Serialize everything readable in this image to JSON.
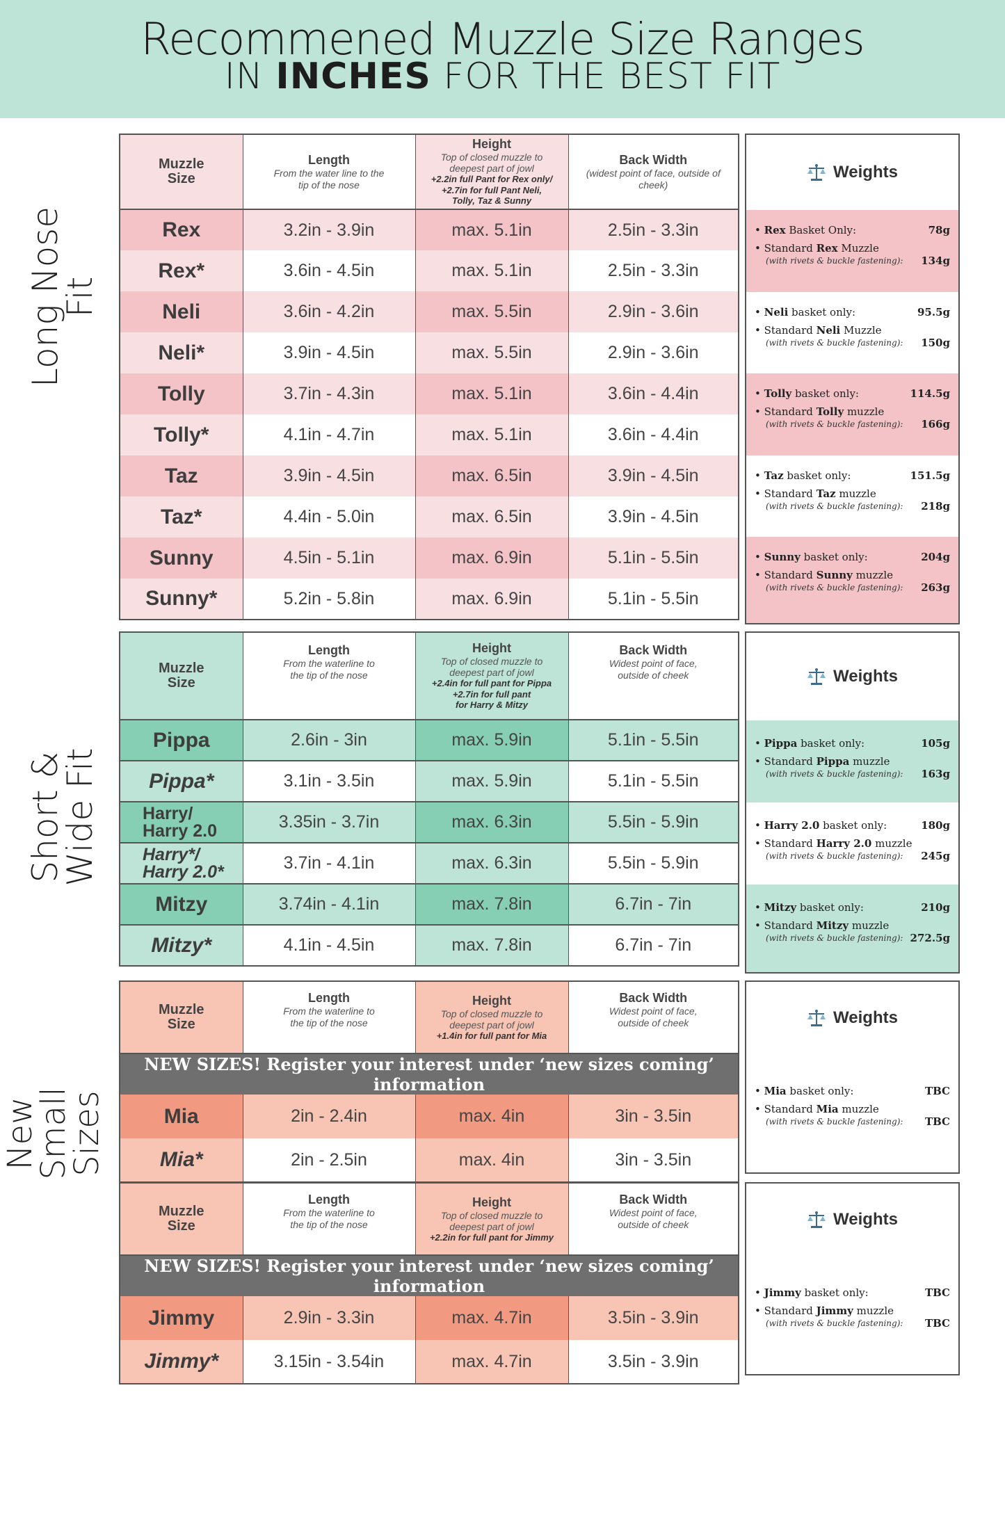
{
  "title": {
    "line1": "Recommened Muzzle Size Ranges",
    "line2_pre": "IN",
    "line2_bold": "INCHES",
    "line2_post": "FOR THE BEST FIT"
  },
  "sections": {
    "long_nose": "Long Nose Fit",
    "short_wide": "Short & Wide Fit",
    "new_small": "New Small Sizes"
  },
  "colors": {
    "pink_dark": "#f3c3c7",
    "pink_light": "#f8e0e2",
    "green_dark": "#86ceb4",
    "green_light": "#bee3d7",
    "orange_dark": "#f29a81",
    "orange_light": "#f8c4b4",
    "banner": "#bee3d7"
  },
  "headers": {
    "muzzle_size": "Muzzle Size",
    "length": "Length",
    "height": "Height",
    "back_width": "Back Width",
    "weights": "Weights",
    "length_sub_long": "From the water line to the tip of the nose",
    "length_sub": "From the waterline to the tip of the nose",
    "height_sub": "Top of closed muzzle to deepest part of jowl",
    "back_sub_long": "(widest point of face, outside of cheek)",
    "back_sub": "Widest point of face, outside of cheek"
  },
  "notes": {
    "long_1": "+2.2in full Pant for Rex only/",
    "long_2": "+2.7in for full Pant Neli, Tolly, Taz & Sunny",
    "short_1": "+2.4in for full pant for Pippa",
    "short_2": "+2.7in for full pant for Harry & Mitzy",
    "mia": "+1.4in for full pant for Mia",
    "jimmy": "+2.2in for full pant for Jimmy"
  },
  "new_sizes_banner": "NEW SIZES! Register your interest under ‘new sizes coming’ information",
  "long_rows": [
    {
      "name": "Rex",
      "length": "3.2in - 3.9in",
      "height": "max. 5.1in",
      "back": "2.5in - 3.3in"
    },
    {
      "name": "Rex*",
      "length": "3.6in - 4.5in",
      "height": "max. 5.1in",
      "back": "2.5in - 3.3in"
    },
    {
      "name": "Neli",
      "length": "3.6in - 4.2in",
      "height": "max. 5.5in",
      "back": "2.9in - 3.6in"
    },
    {
      "name": "Neli*",
      "length": "3.9in - 4.5in",
      "height": "max. 5.5in",
      "back": "2.9in - 3.6in"
    },
    {
      "name": "Tolly",
      "length": "3.7in - 4.3in",
      "height": "max. 5.1in",
      "back": "3.6in - 4.4in"
    },
    {
      "name": "Tolly*",
      "length": "4.1in - 4.7in",
      "height": "max. 5.1in",
      "back": "3.6in - 4.4in"
    },
    {
      "name": "Taz",
      "length": "3.9in - 4.5in",
      "height": "max. 6.5in",
      "back": "3.9in - 4.5in"
    },
    {
      "name": "Taz*",
      "length": "4.4in - 5.0in",
      "height": "max. 6.5in",
      "back": "3.9in - 4.5in"
    },
    {
      "name": "Sunny",
      "length": "4.5in - 5.1in",
      "height": "max. 6.9in",
      "back": "5.1in - 5.5in"
    },
    {
      "name": "Sunny*",
      "length": "5.2in - 5.8in",
      "height": "max. 6.9in",
      "back": "5.1in - 5.5in"
    }
  ],
  "short_rows": [
    {
      "name": "Pippa",
      "length": "2.6in - 3in",
      "height": "max. 5.9in",
      "back": "5.1in - 5.5in"
    },
    {
      "name": "Pippa*",
      "length": "3.1in - 3.5in",
      "height": "max. 5.9in",
      "back": "5.1in - 5.5in"
    },
    {
      "name_a": "Harry/",
      "name_b": "Harry 2.0",
      "length": "3.35in - 3.7in",
      "height": "max. 6.3in",
      "back": "5.5in - 5.9in"
    },
    {
      "name_a": "Harry*/",
      "name_b": "Harry 2.0*",
      "length": "3.7in - 4.1in",
      "height": "max. 6.3in",
      "back": "5.5in - 5.9in"
    },
    {
      "name": "Mitzy",
      "length": "3.74in - 4.1in",
      "height": "max. 7.8in",
      "back": "6.7in - 7in"
    },
    {
      "name": "Mitzy*",
      "length": "4.1in - 4.5in",
      "height": "max. 7.8in",
      "back": "6.7in - 7in"
    }
  ],
  "mia_rows": [
    {
      "name": "Mia",
      "length": "2in - 2.4in",
      "height": "max. 4in",
      "back": "3in - 3.5in"
    },
    {
      "name": "Mia*",
      "length": "2in - 2.5in",
      "height": "max. 4in",
      "back": "3in - 3.5in"
    }
  ],
  "jimmy_rows": [
    {
      "name": "Jimmy",
      "length": "2.9in - 3.3in",
      "height": "max. 4.7in",
      "back": "3.5in - 3.9in"
    },
    {
      "name": "Jimmy*",
      "length": "3.15in - 3.54in",
      "height": "max. 4.7in",
      "back": "3.5in - 3.9in"
    }
  ],
  "weights_sub": "(with rivets & buckle fastening):",
  "weights": {
    "rex": {
      "a_pre": "• ",
      "a_name": "Rex",
      "a_post": " Basket Only:",
      "a_val": "78g",
      "b_pre": "• Standard ",
      "b_name": "Rex",
      "b_post": " Muzzle",
      "b_val": "134g"
    },
    "neli": {
      "a_pre": "• ",
      "a_name": "Neli",
      "a_post": " basket only:",
      "a_val": "95.5g",
      "b_pre": "• Standard ",
      "b_name": "Neli",
      "b_post": " Muzzle",
      "b_val": "150g"
    },
    "tolly": {
      "a_pre": "• ",
      "a_name": "Tolly",
      "a_post": " basket only:",
      "a_val": "114.5g",
      "b_pre": "• Standard ",
      "b_name": "Tolly",
      "b_post": " muzzle",
      "b_val": "166g"
    },
    "taz": {
      "a_pre": "• ",
      "a_name": "Taz",
      "a_post": " basket only:",
      "a_val": "151.5g",
      "b_pre": "• Standard ",
      "b_name": "Taz",
      "b_post": " muzzle",
      "b_val": "218g"
    },
    "sunny": {
      "a_pre": "• ",
      "a_name": "Sunny",
      "a_post": " basket only:",
      "a_val": "204g",
      "b_pre": "• Standard ",
      "b_name": "Sunny",
      "b_post": " muzzle",
      "b_val": "263g"
    },
    "pippa": {
      "a_pre": "• ",
      "a_name": "Pippa",
      "a_post": " basket only:",
      "a_val": "105g",
      "b_pre": "• Standard ",
      "b_name": "Pippa",
      "b_post": " muzzle",
      "b_val": "163g"
    },
    "harry": {
      "a_pre": "• ",
      "a_name": "Harry 2.0",
      "a_post": " basket only:",
      "a_val": "180g",
      "b_pre": "• Standard ",
      "b_name": "Harry 2.0",
      "b_post": " muzzle",
      "b_val": "245g"
    },
    "mitzy": {
      "a_pre": "• ",
      "a_name": "Mitzy",
      "a_post": " basket only:",
      "a_val": "210g",
      "b_pre": "• Standard ",
      "b_name": "Mitzy",
      "b_post": " muzzle",
      "b_val": "272.5g"
    },
    "mia": {
      "a_pre": "• ",
      "a_name": "Mia",
      "a_post": " basket only:",
      "a_val": "TBC",
      "b_pre": "• Standard ",
      "b_name": "Mia",
      "b_post": " muzzle",
      "b_val": "TBC"
    },
    "jimmy": {
      "a_pre": "• ",
      "a_name": "Jimmy",
      "a_post": " basket only:",
      "a_val": "TBC",
      "b_pre": "• Standard ",
      "b_name": "Jimmy",
      "b_post": " muzzle",
      "b_val": "TBC"
    }
  }
}
